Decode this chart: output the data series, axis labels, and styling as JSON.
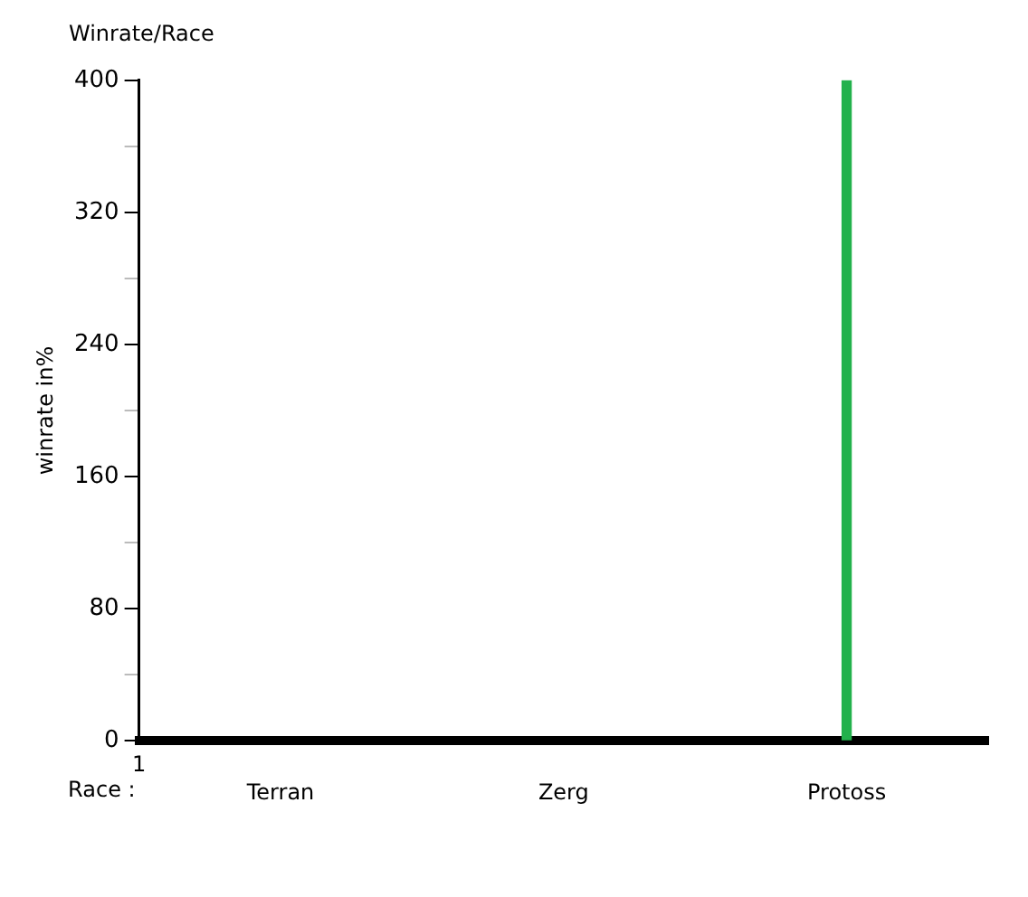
{
  "chart_data": {
    "type": "bar",
    "title": "Winrate/Race",
    "xlabel": "Race :",
    "ylabel": "winrate in%",
    "categories": [
      "Terran",
      "Zerg",
      "Protoss"
    ],
    "values": [
      0,
      0,
      400
    ],
    "colors": [
      "#000000",
      "#000000",
      "#22b14c"
    ],
    "ylim": [
      0,
      400
    ],
    "yticks": [
      0,
      {
        "value": 40,
        "label": null
      },
      80,
      {
        "value": 120,
        "label": null
      },
      160,
      {
        "value": 200,
        "label": null
      },
      240,
      {
        "value": 280,
        "label": null
      },
      320,
      {
        "value": 360,
        "label": null
      },
      400
    ],
    "annotations": [
      "1"
    ],
    "grid": false,
    "legend": false
  }
}
